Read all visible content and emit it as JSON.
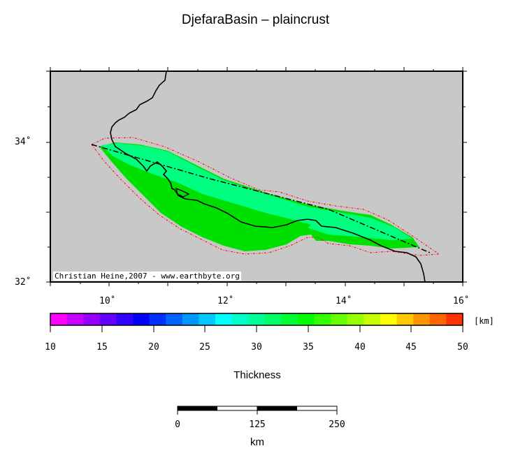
{
  "title": "DjefaraBasin – plaincrust",
  "map": {
    "x_ticks": [
      "10˚",
      "12˚",
      "14˚",
      "16˚"
    ],
    "y_ticks": [
      "34˚",
      "32˚"
    ],
    "credit": "Christian Heine,2007 - www.earthbyte.org",
    "colors": {
      "ocean": "#c8c8c8",
      "fill_light": "#00ff80",
      "fill_dark": "#00e000",
      "outline": "#ff0000"
    }
  },
  "colorbar": {
    "unit": "[km]",
    "ticks": [
      "10",
      "15",
      "20",
      "25",
      "30",
      "35",
      "40",
      "45",
      "50"
    ],
    "label": "Thickness",
    "colors": [
      "#ff00ff",
      "#c800ff",
      "#9600ff",
      "#6400ff",
      "#3200ff",
      "#0000ff",
      "#0032ff",
      "#0064ff",
      "#0096ff",
      "#00c8ff",
      "#00ffff",
      "#00ffc8",
      "#00ff96",
      "#00ff64",
      "#00ff32",
      "#00ff00",
      "#32ff00",
      "#64ff00",
      "#96ff00",
      "#c8ff00",
      "#ffff00",
      "#ffc800",
      "#ff9600",
      "#ff6400",
      "#ff3200"
    ]
  },
  "scalebar": {
    "ticks": [
      "0",
      "125",
      "250"
    ],
    "unit": "km"
  }
}
